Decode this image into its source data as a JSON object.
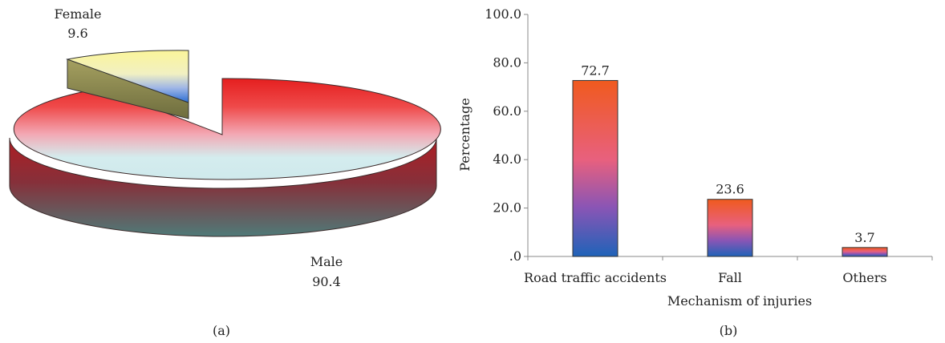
{
  "chart_data": [
    {
      "type": "pie",
      "panel_label": "(a)",
      "slices": [
        {
          "name": "Female",
          "value": 9.6,
          "exploded": true
        },
        {
          "name": "Male",
          "value": 90.4,
          "exploded": false
        }
      ],
      "style": "3d-exploded"
    },
    {
      "type": "bar",
      "panel_label": "(b)",
      "categories": [
        "Road traffic accidents",
        "Fall",
        "Others"
      ],
      "values": [
        72.7,
        23.6,
        3.7
      ],
      "value_labels": [
        "72.7",
        "23.6",
        "3.7"
      ],
      "xlabel": "Mechanism of injuries",
      "ylabel": "Percentage",
      "ylim": [
        0,
        100
      ],
      "yticks": [
        ".0",
        "20.0",
        "40.0",
        "60.0",
        "80.0",
        "100.0"
      ],
      "grid": false,
      "colors": {
        "bar_top": "#f05a1e",
        "bar_mid": "#e8607e",
        "bar_lower": "#8a55b5",
        "bar_bottom": "#1f63b8"
      }
    }
  ]
}
